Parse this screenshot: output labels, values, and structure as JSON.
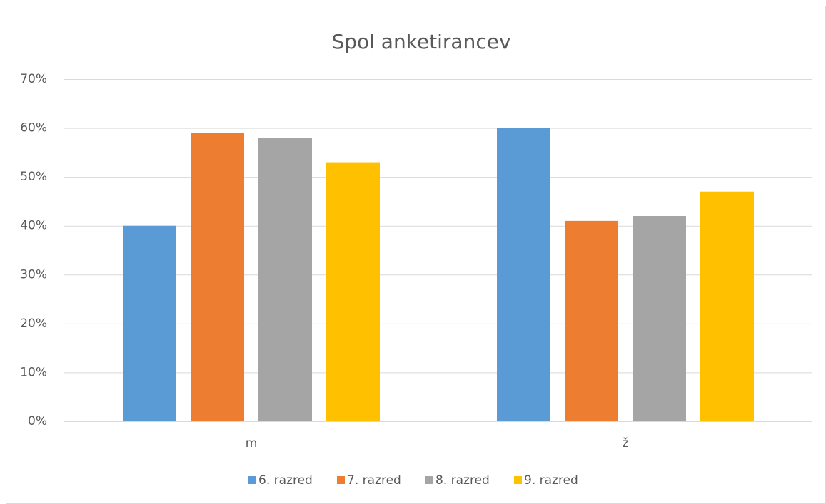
{
  "chart_data": {
    "type": "bar",
    "title": "Spol anketirancev",
    "categories": [
      "m",
      "ž"
    ],
    "series": [
      {
        "name": "6. razred",
        "color": "#5b9bd5",
        "values": [
          40,
          60
        ]
      },
      {
        "name": "7. razred",
        "color": "#ed7d31",
        "values": [
          59,
          41
        ]
      },
      {
        "name": "8. razred",
        "color": "#a5a5a5",
        "values": [
          58,
          42
        ]
      },
      {
        "name": "9. razred",
        "color": "#ffc000",
        "values": [
          53,
          47
        ]
      }
    ],
    "ylim": [
      0,
      70
    ],
    "yticks": [
      {
        "value": 0,
        "label": "0%"
      },
      {
        "value": 10,
        "label": "10%"
      },
      {
        "value": 20,
        "label": "20%"
      },
      {
        "value": 30,
        "label": "30%"
      },
      {
        "value": 40,
        "label": "40%"
      },
      {
        "value": 50,
        "label": "50%"
      },
      {
        "value": 60,
        "label": "60%"
      },
      {
        "value": 70,
        "label": "70%"
      }
    ],
    "grid": true,
    "legend": "bottom"
  }
}
